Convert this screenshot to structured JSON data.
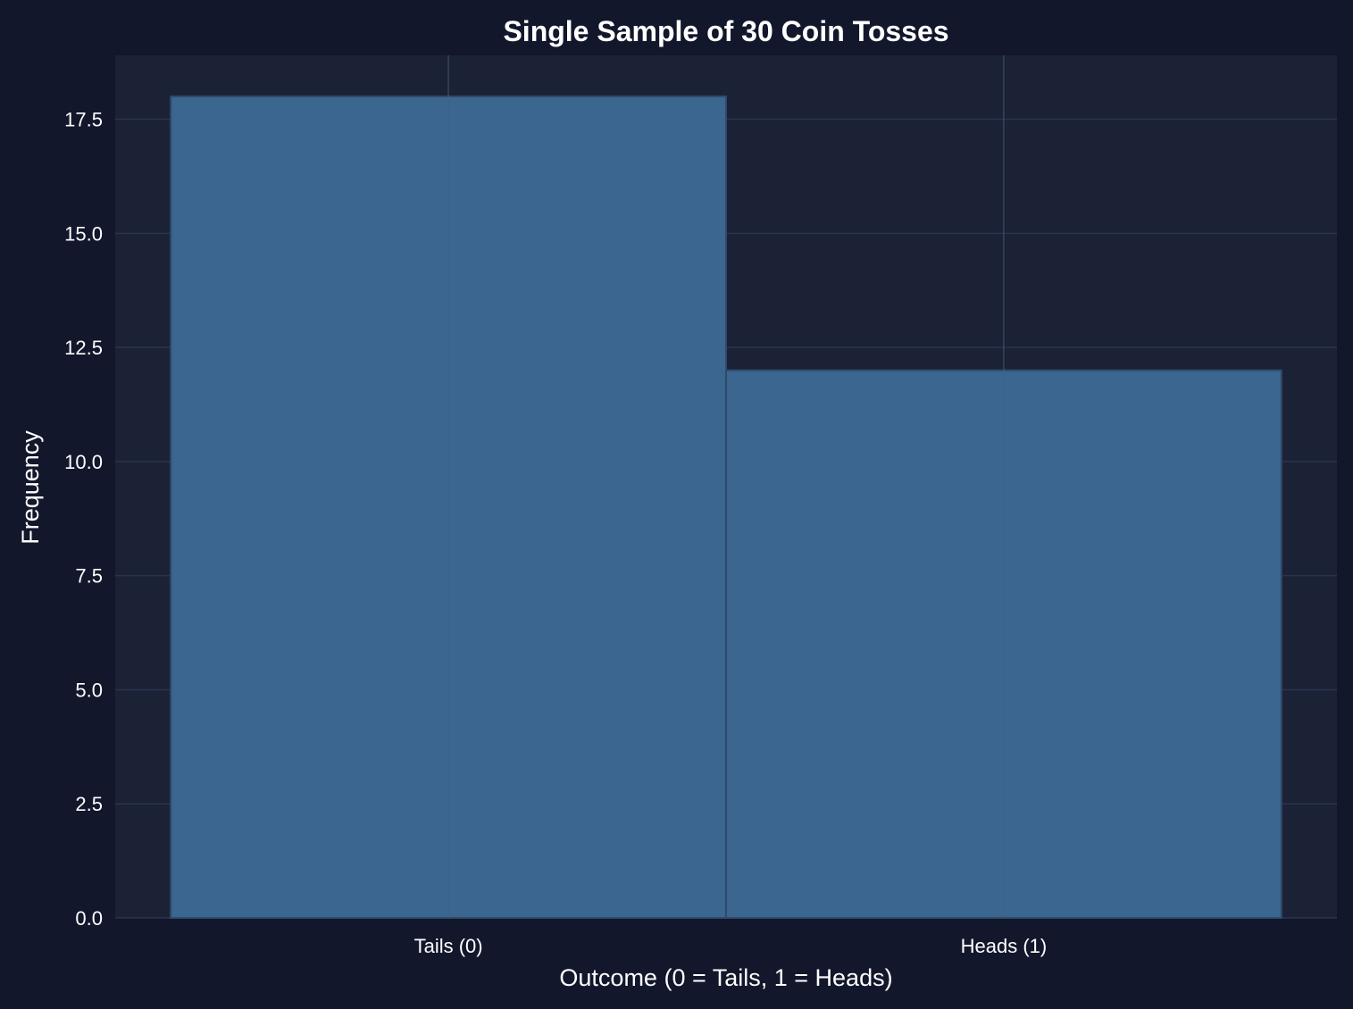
{
  "chart_data": {
    "type": "bar",
    "title": "Single Sample of 30 Coin Tosses",
    "xlabel": "Outcome (0 = Tails, 1 = Heads)",
    "ylabel": "Frequency",
    "categories": [
      "Tails (0)",
      "Heads (1)"
    ],
    "values": [
      18,
      12
    ],
    "ylim": [
      0,
      18.9
    ],
    "yticks": [
      "0.0",
      "2.5",
      "5.0",
      "7.5",
      "10.0",
      "12.5",
      "15.0",
      "17.5"
    ],
    "grid": true,
    "legend": "none"
  },
  "colors": {
    "background": "#12172b",
    "plot_background": "#1b2236",
    "bar_fill": "#3a6690",
    "bar_edge": "#2f4a6a",
    "grid": "#2a3350",
    "text": "#ffffff"
  }
}
